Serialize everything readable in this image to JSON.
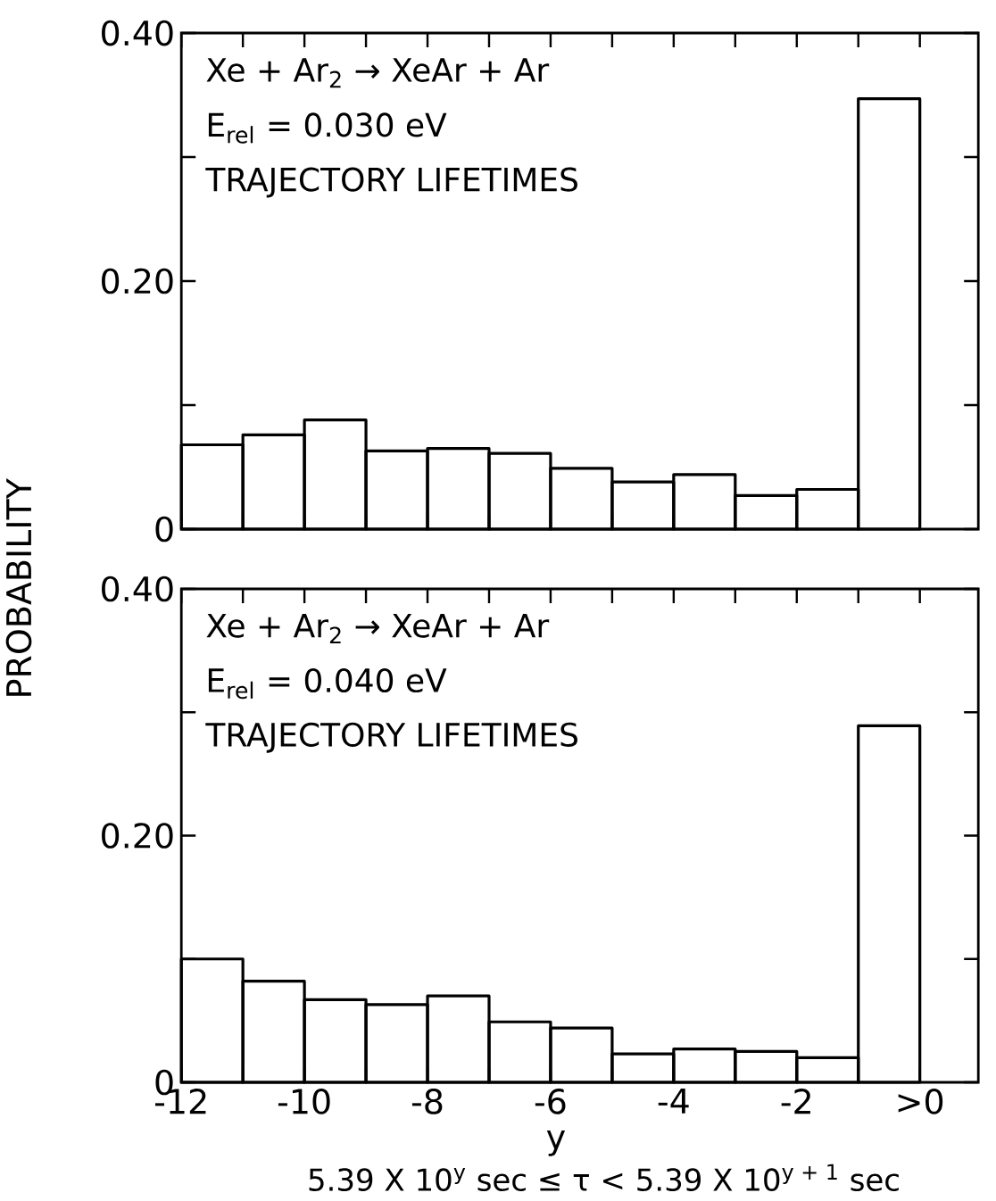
{
  "chart_data": [
    {
      "type": "histogram",
      "bins": [
        -12,
        -11,
        -10,
        -9,
        -8,
        -7,
        -6,
        -5,
        -4,
        -3,
        -2,
        -1,
        0
      ],
      "values": [
        0.068,
        0.076,
        0.088,
        0.063,
        0.065,
        0.061,
        0.049,
        0.038,
        0.044,
        0.027,
        0.032,
        0.347
      ],
      "color": "#000000",
      "xlim": [
        -12,
        0.95
      ],
      "ylim": [
        0,
        0.4
      ],
      "xticks": [
        {
          "value": -12,
          "label": null
        },
        {
          "value": -11,
          "label": null
        },
        {
          "value": -10,
          "label": null
        },
        {
          "value": -9,
          "label": null
        },
        {
          "value": -8,
          "label": null
        },
        {
          "value": -7,
          "label": null
        },
        {
          "value": -6,
          "label": null
        },
        {
          "value": -5,
          "label": null
        },
        {
          "value": -4,
          "label": null
        },
        {
          "value": -3,
          "label": null
        },
        {
          "value": -2,
          "label": null
        },
        {
          "value": -1,
          "label": null
        },
        {
          "value": 0,
          "label": null
        }
      ],
      "yticks": [
        0,
        {
          "value": 0.1,
          "label": null
        },
        {
          "value": 0.2,
          "label": "0.20"
        },
        {
          "value": 0.3,
          "label": null
        },
        {
          "value": 0.4,
          "label": "0.40"
        }
      ],
      "tick_labels": "y",
      "grid": false,
      "ylabel": "PROBABILITY",
      "annotations": [
        "Xe + Ar$_{2}$ → XeAr + Ar",
        "E$_{rel}$ = 0.030 eV",
        "TRAJECTORY LIFETIMES"
      ]
    },
    {
      "type": "histogram",
      "bins": [
        -12,
        -11,
        -10,
        -9,
        -8,
        -7,
        -6,
        -5,
        -4,
        -3,
        -2,
        -1,
        0
      ],
      "values": [
        0.1,
        0.082,
        0.067,
        0.063,
        0.07,
        0.049,
        0.044,
        0.023,
        0.027,
        0.025,
        0.02,
        0.289
      ],
      "color": "#000000",
      "xlim": [
        -12,
        0.95
      ],
      "ylim": [
        0,
        0.4
      ],
      "xticks": [
        {
          "value": -12,
          "label": "-12"
        },
        {
          "value": -11,
          "label": null
        },
        {
          "value": -10,
          "label": "-10"
        },
        {
          "value": -9,
          "label": null
        },
        {
          "value": -8,
          "label": "-8"
        },
        {
          "value": -7,
          "label": null
        },
        {
          "value": -6,
          "label": "-6"
        },
        {
          "value": -5,
          "label": null
        },
        {
          "value": -4,
          "label": "-4"
        },
        {
          "value": -3,
          "label": null
        },
        {
          "value": -2,
          "label": "-2"
        },
        {
          "value": -1,
          "label": null
        },
        {
          "value": 0,
          "label": ">0"
        }
      ],
      "yticks": [
        0,
        {
          "value": 0.1,
          "label": null
        },
        {
          "value": 0.2,
          "label": "0.20"
        },
        {
          "value": 0.3,
          "label": null
        },
        {
          "value": 0.4,
          "label": "0.40"
        }
      ],
      "grid": false,
      "xlabel": "y",
      "annotations": [
        "Xe + Ar$_{2}$ → XeAr + Ar",
        "E$_{rel}$ = 0.040 eV",
        "TRAJECTORY LIFETIMES",
        "5.39 X 10$^{y}$ sec ≤ τ < 5.39 X 10$^{y + 1}$ sec"
      ]
    }
  ]
}
